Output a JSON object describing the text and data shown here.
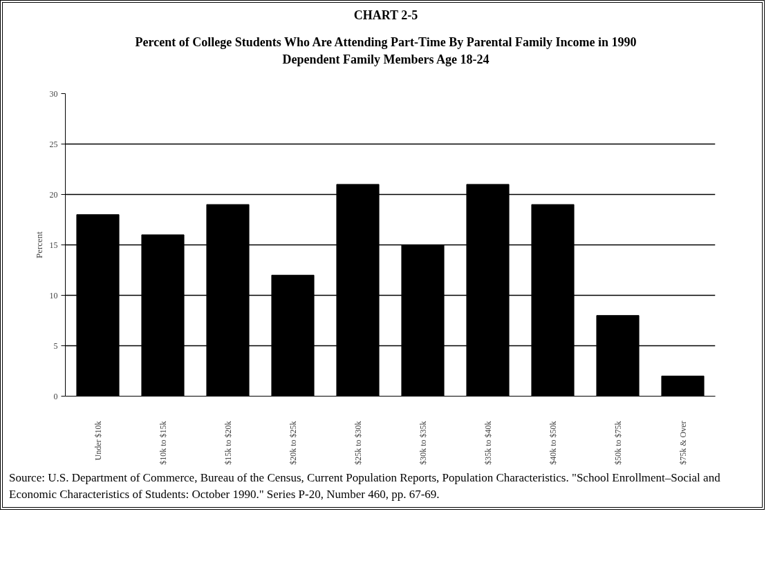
{
  "chart_data": {
    "type": "bar",
    "title": "CHART 2-5",
    "subtitle": "Percent of College Students Who Are Attending Part-Time By Parental Family Income in 1990\nDependent Family Members Age 18-24",
    "ylabel": "Percent",
    "categories": [
      "Under $10k",
      "$10k to $15k",
      "$15k to $20k",
      "$20k to $25k",
      "$25k to $30k",
      "$30k to $35k",
      "$35k to $40k",
      "$40k to $50k",
      "$50k to $75k",
      "$75k & Over"
    ],
    "values": [
      18,
      16,
      19,
      12,
      21,
      15,
      21,
      19,
      8,
      2
    ],
    "color": "#000000",
    "ylim": [
      0,
      30
    ],
    "yticks": [
      0,
      5,
      10,
      15,
      20,
      25,
      30
    ],
    "grid": "y",
    "annotations": [
      "Source: U.S. Department of Commerce, Bureau of the Census, Current Population Reports, Population Characteristics.  \"School Enrollment–Social and Economic Characteristics of Students: October 1990.\"  Series P-20, Number 460, pp. 67-69."
    ]
  }
}
